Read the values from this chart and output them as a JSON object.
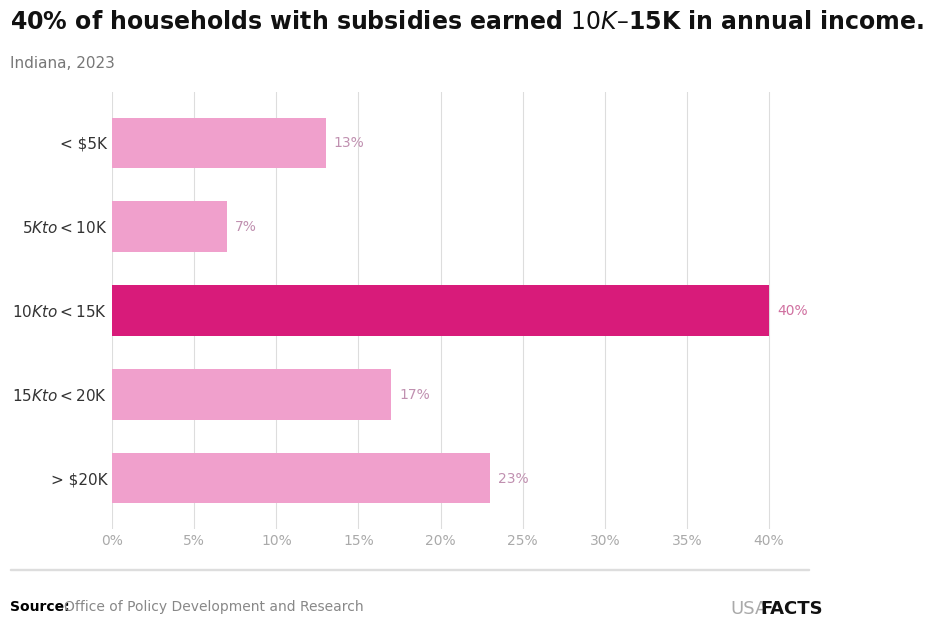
{
  "title": "40% of households with subsidies earned $10K–$15K in annual income.",
  "subtitle": "Indiana, 2023",
  "categories": [
    "< $5K",
    "$5K to <$10K",
    "$10K to <$15K",
    "$15K to <$20K",
    "> $20K"
  ],
  "values": [
    13,
    7,
    40,
    17,
    23
  ],
  "bar_colors": [
    "#f0a0cc",
    "#f0a0cc",
    "#d81b7a",
    "#f0a0cc",
    "#f0a0cc"
  ],
  "label_colors": [
    "#c090b0",
    "#c090b0",
    "#d070a0",
    "#c090b0",
    "#c090b0"
  ],
  "xlim": [
    0,
    43
  ],
  "xticks": [
    0,
    5,
    10,
    15,
    20,
    25,
    30,
    35,
    40
  ],
  "source_bold": "Source:",
  "source_regular": "Office of Policy Development and Research",
  "source_text_color": "#888888",
  "source_bold_color": "#000000",
  "watermark_light": "USA",
  "watermark_bold": "FACTS",
  "title_fontsize": 17,
  "subtitle_fontsize": 11,
  "bar_height": 0.6,
  "background_color": "#ffffff",
  "grid_color": "#dddddd",
  "tick_label_color": "#aaaaaa",
  "ylabel_color": "#333333",
  "label_fontsize": 10
}
